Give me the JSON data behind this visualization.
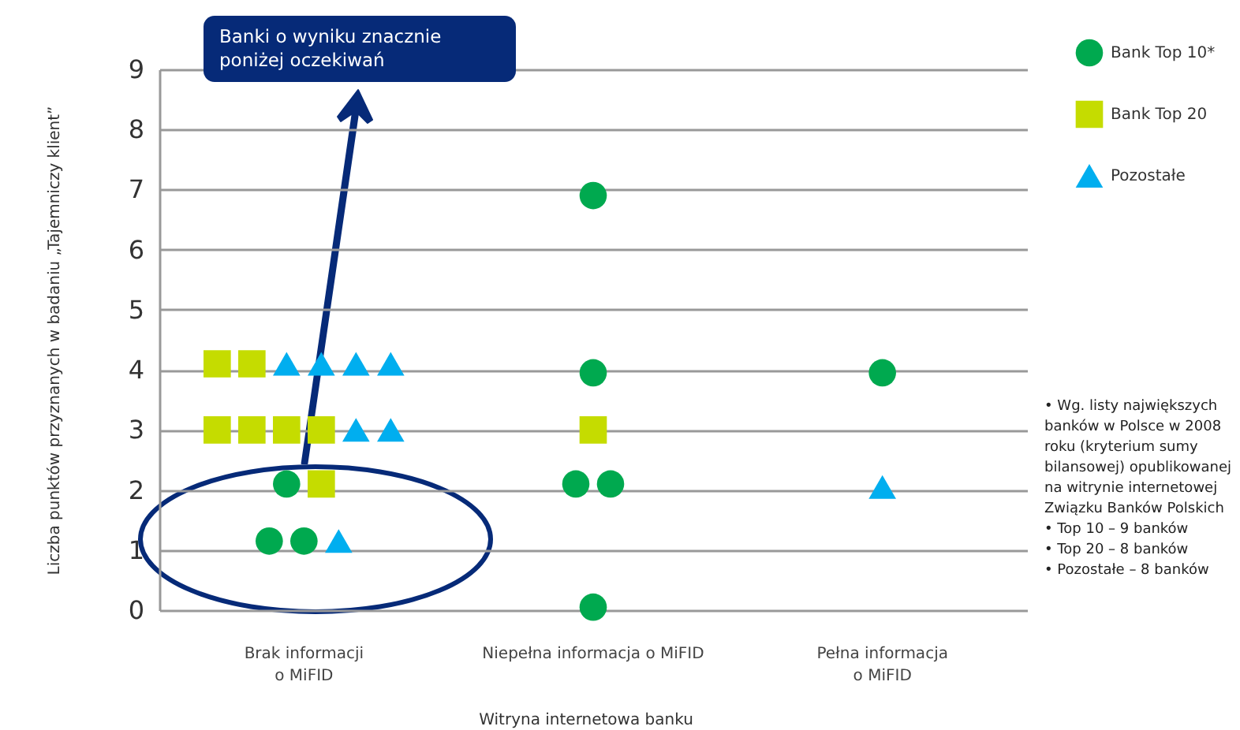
{
  "chart_data": {
    "type": "scatter",
    "xlabel": "Witryna internetowa banku",
    "ylabel": "Liczba punktów przyznanych w badaniu „Tajemniczy klient”",
    "categories": [
      "Brak informacji\no MiFID",
      "Niepełna informacja o MiFID",
      "Pełna informacja\no MiFID"
    ],
    "ylim": [
      0,
      9
    ],
    "yticks": [
      0,
      1,
      2,
      3,
      4,
      5,
      6,
      7,
      8,
      9
    ],
    "grid": "y",
    "legend": "top right",
    "series": [
      {
        "name": "Bank Top 10*",
        "color": "#00a94f",
        "marker": "circle",
        "x": [
          "Brak informacji\no MiFID",
          "Brak informacji\no MiFID",
          "Brak informacji\no MiFID",
          "Niepełna informacja o MiFID",
          "Niepełna informacja o MiFID",
          "Niepełna informacja o MiFID",
          "Niepełna informacja o MiFID",
          "Niepełna informacja o MiFID",
          "Pełna informacja\no MiFID"
        ],
        "values": [
          2.1,
          1.15,
          1.15,
          6.9,
          3.95,
          2.1,
          2.1,
          0.05,
          3.95
        ]
      },
      {
        "name": "Bank Top 20",
        "color": "#c5dc00",
        "marker": "square",
        "x": [
          "Brak informacji\no MiFID",
          "Brak informacji\no MiFID",
          "Brak informacji\no MiFID",
          "Brak informacji\no MiFID",
          "Brak informacji\no MiFID",
          "Brak informacji\no MiFID",
          "Brak informacji\no MiFID",
          "Niepełna informacja o MiFID"
        ],
        "values": [
          3.0,
          3.0,
          3.0,
          3.0,
          4.1,
          4.1,
          2.1,
          3.0
        ]
      },
      {
        "name": "Pozostałe",
        "color": "#00aeef",
        "marker": "triangle",
        "x": [
          "Brak informacji\no MiFID",
          "Brak informacji\no MiFID",
          "Brak informacji\no MiFID",
          "Brak informacji\no MiFID",
          "Brak informacji\no MiFID",
          "Brak informacji\no MiFID",
          "Brak informacji\no MiFID",
          "Pełna informacja\no MiFID"
        ],
        "values": [
          4.1,
          4.1,
          4.1,
          4.1,
          3.0,
          3.0,
          1.15,
          2.05
        ]
      }
    ],
    "annotations": [
      "Banki o wyniku znacznie poniżej oczekiwań",
      "• Wg. listy największych banków w Polsce w 2008 roku (kryterium sumy bilansowej) opublikowanej na witrynie internetowej Związku Banków Polskich",
      "• Top 10 – 9 banków",
      "• Top 20 – 8 banków",
      "• Pozostałe – 8 banków"
    ]
  }
}
